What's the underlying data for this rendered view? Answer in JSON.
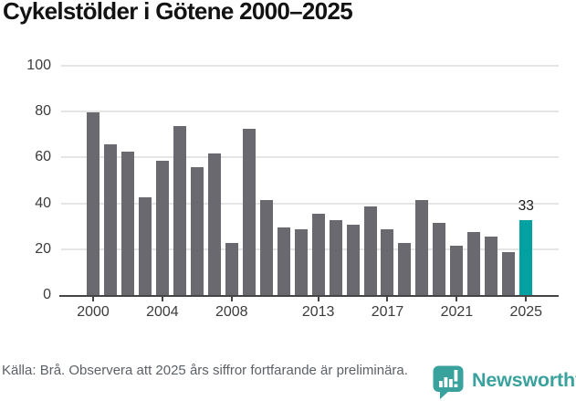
{
  "title": "Cykelstölder i Götene 2000–2025",
  "chart_data": {
    "type": "bar",
    "title": "Cykelstölder i Götene 2000–2025",
    "x": [
      2000,
      2001,
      2002,
      2003,
      2004,
      2005,
      2006,
      2007,
      2008,
      2009,
      2010,
      2011,
      2012,
      2013,
      2014,
      2015,
      2016,
      2017,
      2018,
      2019,
      2020,
      2021,
      2022,
      2023,
      2024,
      2025
    ],
    "values": [
      80,
      66,
      63,
      43,
      59,
      74,
      56,
      62,
      23,
      73,
      42,
      30,
      29,
      36,
      33,
      31,
      39,
      29,
      23,
      42,
      32,
      22,
      28,
      26,
      19,
      33
    ],
    "ylim": [
      0,
      100
    ],
    "yticks": [
      0,
      20,
      40,
      60,
      80,
      100
    ],
    "xtick_years": [
      2000,
      2004,
      2008,
      2013,
      2017,
      2021,
      2025
    ],
    "grid": true,
    "legend": "none",
    "bar_color": "#6b6970",
    "highlight": {
      "year": 2025,
      "value": 33,
      "label": "33",
      "color": "#00a1a0"
    },
    "grid_color": "#e5e5e5",
    "axis_color": "#454545",
    "tick_label_color": "#3c3c3c"
  },
  "footer": {
    "source_text": "Källa: Brå. Observera att 2025 års siffror fortfarande är preliminära.",
    "logo_text": "Newsworthy",
    "logo_color": "#3aa29d",
    "logo_icon": "newsworthy-speech-bubble-bar-chart-icon"
  }
}
